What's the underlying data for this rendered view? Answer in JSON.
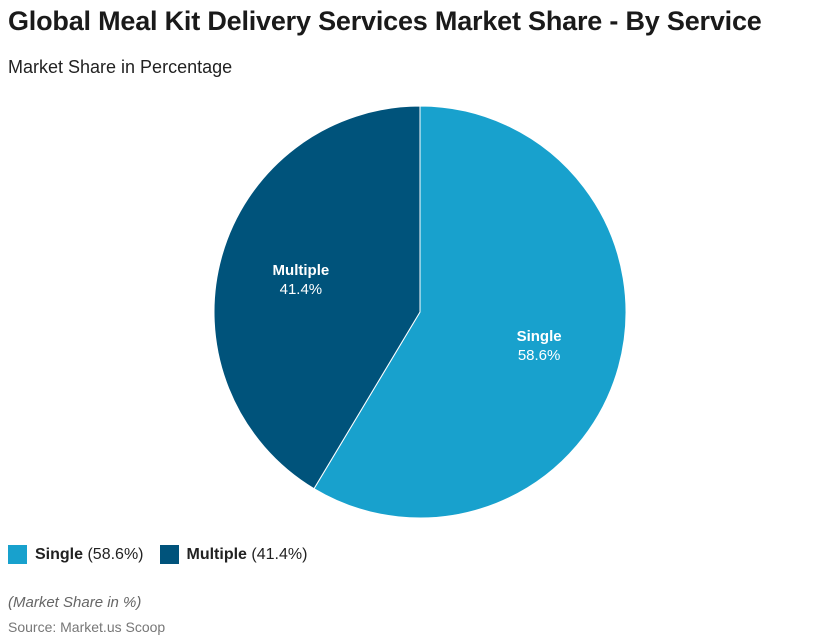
{
  "chart_data": {
    "type": "pie",
    "title": "Global Meal Kit Delivery Services Market Share - By Service",
    "subtitle": "Market Share in Percentage",
    "slices": [
      {
        "label": "Single",
        "value": 58.6,
        "value_label": "58.6%",
        "legend_value": "(58.6%)",
        "color": "#18a1cd"
      },
      {
        "label": "Multiple",
        "value": 41.4,
        "value_label": "41.4%",
        "legend_value": "(41.4%)",
        "color": "#00537b"
      }
    ],
    "legend_placement": "bottom-left",
    "note": "(Market Share in %)",
    "source": "Source: Market.us Scoop"
  }
}
